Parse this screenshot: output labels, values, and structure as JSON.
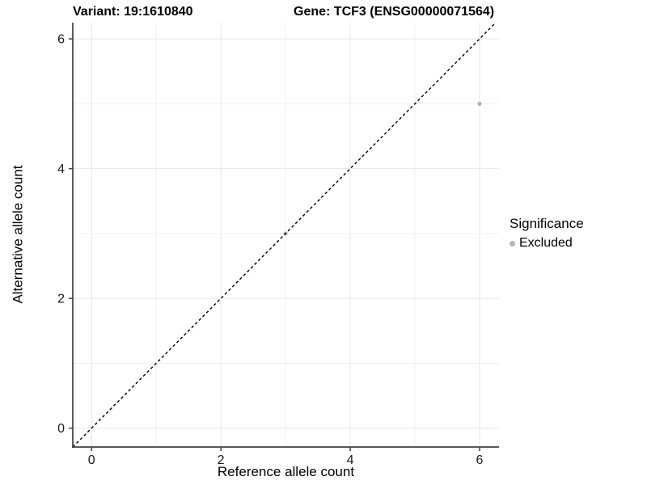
{
  "figure": {
    "titles": {
      "variant": "Variant: 19:1610840",
      "gene": "Gene: TCF3 (ENSG00000071564)"
    }
  },
  "axes": {
    "x_label": "Reference allele count",
    "y_label": "Alternative allele count"
  },
  "legend": {
    "title": "Significance",
    "items": [
      {
        "label": "Excluded",
        "color": "#b5b5b5"
      }
    ]
  },
  "chart_data": {
    "type": "scatter",
    "title_left": "Variant: 19:1610840",
    "title_right": "Gene: TCF3 (ENSG00000071564)",
    "xlabel": "Reference allele count",
    "ylabel": "Alternative allele count",
    "xlim": [
      -0.29,
      6.3
    ],
    "ylim": [
      -0.29,
      6.25
    ],
    "x_ticks": [
      0,
      2,
      4,
      6
    ],
    "y_ticks": [
      0,
      2,
      4,
      6
    ],
    "x_minor_gridlines": [
      1,
      3,
      5
    ],
    "y_minor_gridlines": [
      1,
      3,
      5
    ],
    "grid": "major and minor, light gray on white",
    "legend_position": "right",
    "series": [
      {
        "name": "Excluded",
        "marker": "circle",
        "color": "#b5b5b5",
        "points": [
          {
            "x": 3,
            "y": 3
          },
          {
            "x": 6,
            "y": 5
          }
        ]
      }
    ],
    "reference_line": {
      "slope": 1,
      "intercept": 0,
      "style": "dashed",
      "color": "#000000"
    },
    "colors": {
      "background": "#ffffff",
      "grid_major": "#e6e6e6",
      "grid_minor": "#f0f0f0",
      "axis": "#404040",
      "tick_text": "#1a1a1a"
    }
  }
}
